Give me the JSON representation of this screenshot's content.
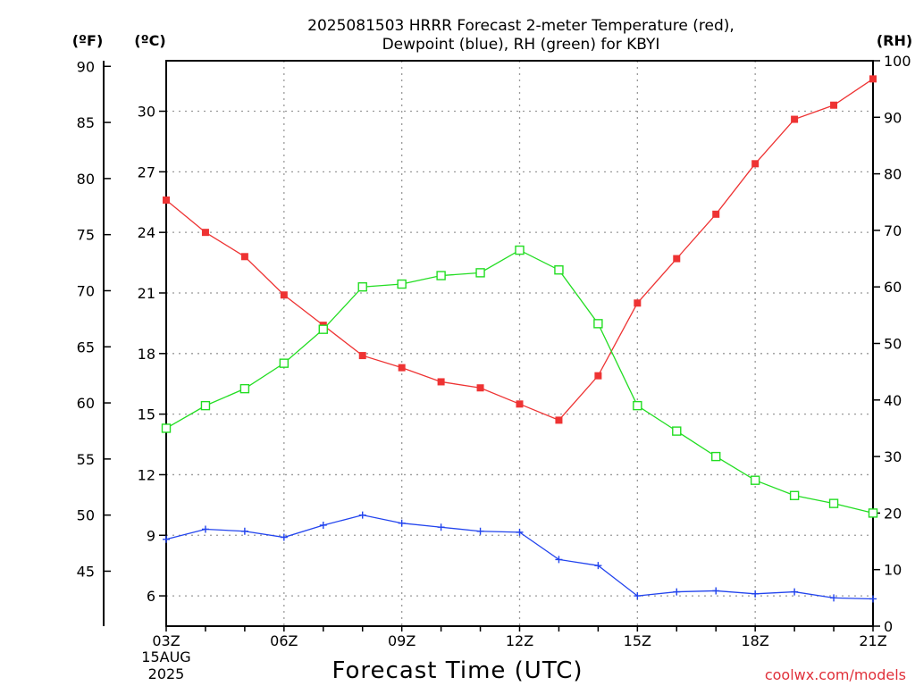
{
  "chart_data": {
    "type": "line",
    "title_line1": "2025081503 HRRR Forecast 2-meter Temperature (red),",
    "title_line2": "Dewpoint (blue), RH (green) for KBYI",
    "xlabel": "Forecast Time (UTC)",
    "date_label_line1": "15AUG",
    "date_label_line2": "2025",
    "credit": "coolwx.com/models",
    "units": {
      "fahrenheit": "(ºF)",
      "celsius": "(ºC)",
      "rh": "(RH)"
    },
    "x": [
      "03Z",
      "04Z",
      "05Z",
      "06Z",
      "07Z",
      "08Z",
      "09Z",
      "10Z",
      "11Z",
      "12Z",
      "13Z",
      "14Z",
      "15Z",
      "16Z",
      "17Z",
      "18Z",
      "19Z",
      "20Z",
      "21Z"
    ],
    "x_tick_labels": [
      {
        "index": 0,
        "label": "03Z"
      },
      {
        "index": 3,
        "label": "06Z"
      },
      {
        "index": 6,
        "label": "09Z"
      },
      {
        "index": 9,
        "label": "12Z"
      },
      {
        "index": 12,
        "label": "15Z"
      },
      {
        "index": 15,
        "label": "18Z"
      },
      {
        "index": 18,
        "label": "21Z"
      }
    ],
    "celsius_ticks": [
      6,
      9,
      12,
      15,
      18,
      21,
      24,
      27,
      30
    ],
    "fahrenheit_ticks": [
      45,
      50,
      55,
      60,
      65,
      70,
      75,
      80,
      85,
      90
    ],
    "rh_ticks": [
      0,
      10,
      20,
      30,
      40,
      50,
      60,
      70,
      80,
      90,
      100
    ],
    "ylim_celsius": [
      4.5,
      32.5
    ],
    "ylim_rh": [
      0,
      100
    ],
    "grid": true,
    "series": [
      {
        "name": "Temperature",
        "axis": "celsius",
        "color": "#ee3333",
        "marker": "filled-square",
        "values": [
          25.6,
          24.0,
          22.8,
          20.9,
          19.4,
          17.9,
          17.3,
          16.6,
          16.3,
          15.5,
          14.7,
          16.9,
          20.5,
          22.7,
          24.9,
          27.4,
          29.6,
          30.3,
          31.6
        ]
      },
      {
        "name": "Dewpoint",
        "axis": "celsius",
        "color": "#2244ee",
        "marker": "plus",
        "values": [
          8.8,
          9.3,
          9.2,
          8.9,
          9.5,
          10.0,
          9.6,
          9.4,
          9.2,
          9.15,
          7.8,
          7.5,
          6.0,
          6.2,
          6.25,
          6.1,
          6.2,
          5.9,
          5.85
        ]
      },
      {
        "name": "RH",
        "axis": "rh",
        "color": "#22dd22",
        "marker": "open-square",
        "values": [
          35,
          39,
          42,
          46.5,
          52.5,
          60,
          60.5,
          62,
          62.5,
          66.5,
          63,
          53.5,
          39,
          34.5,
          30,
          25.8,
          23.1,
          21.7,
          20
        ]
      }
    ]
  }
}
